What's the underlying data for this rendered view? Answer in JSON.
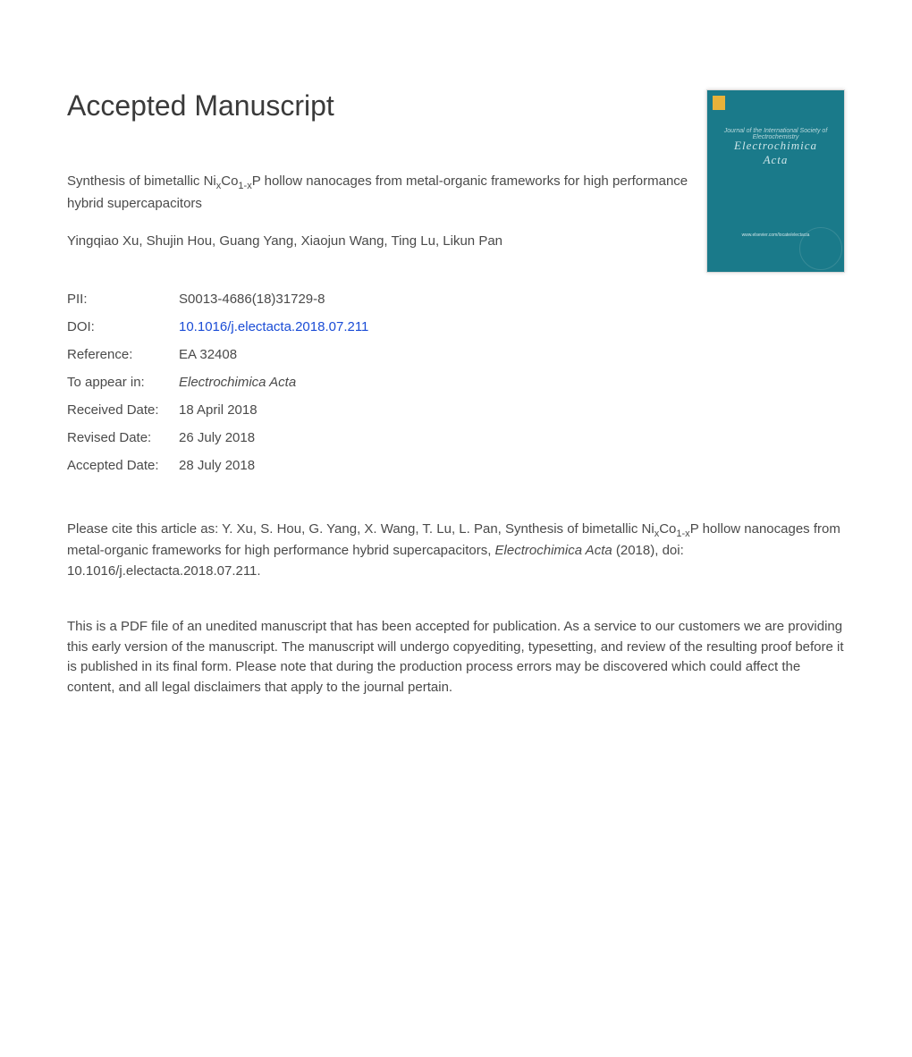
{
  "heading": "Accepted Manuscript",
  "title_pre": "Synthesis of bimetallic Ni",
  "title_sub1": "x",
  "title_mid1": "Co",
  "title_sub2": "1-x",
  "title_post": "P hollow nanocages from metal-organic frameworks for high performance hybrid supercapacitors",
  "authors": "Yingqiao Xu, Shujin Hou, Guang Yang, Xiaojun Wang, Ting Lu, Likun Pan",
  "cover": {
    "journal_line": "Journal of the International Society of Electrochemistry",
    "title1": "Electrochimica",
    "title2": "Acta",
    "footer": "www.elsevier.com/locate/electacta"
  },
  "meta": {
    "pii_label": "PII:",
    "pii_value": "S0013-4686(18)31729-8",
    "doi_label": "DOI:",
    "doi_value": "10.1016/j.electacta.2018.07.211",
    "ref_label": "Reference:",
    "ref_value": "EA 32408",
    "appear_label": "To appear in:",
    "appear_value": "Electrochimica Acta",
    "recv_label": "Received Date:",
    "recv_value": "18 April 2018",
    "rev_label": "Revised Date:",
    "rev_value": "26 July 2018",
    "acc_label": "Accepted Date:",
    "acc_value": "28 July 2018"
  },
  "citation": {
    "pre": "Please cite this article as: Y. Xu, S. Hou, G. Yang, X. Wang, T. Lu, L. Pan, Synthesis of bimetallic Ni",
    "sub1": "x",
    "mid1": "Co",
    "sub2": "1-x",
    "mid2": "P hollow nanocages from metal-organic frameworks for high performance hybrid supercapacitors, ",
    "journal": "Electrochimica Acta",
    "post": " (2018), doi: 10.1016/j.electacta.2018.07.211."
  },
  "disclaimer": "This is a PDF file of an unedited manuscript that has been accepted for publication. As a service to our customers we are providing this early version of the manuscript. The manuscript will undergo copyediting, typesetting, and review of the resulting proof before it is published in its final form. Please note that during the production process errors may be discovered which could affect the content, and all legal disclaimers that apply to the journal pertain.",
  "colors": {
    "text": "#4a4a4a",
    "link": "#1a4cd6",
    "cover_bg": "#1a7a8a",
    "cover_text": "#cce5e8",
    "background": "#ffffff"
  },
  "typography": {
    "heading_fontsize": 32,
    "body_fontsize": 15,
    "subscript_fontsize": 11,
    "font_family": "Arial"
  }
}
